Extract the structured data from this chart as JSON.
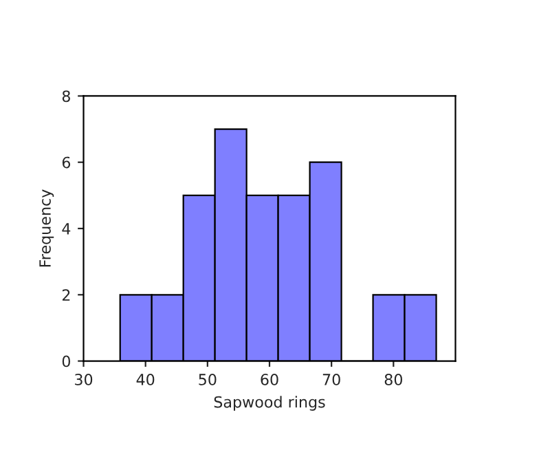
{
  "chart_data": {
    "type": "histogram",
    "xlabel": "Sapwood rings",
    "ylabel": "Frequency",
    "bins": [
      35.9,
      41,
      46.1,
      51.2,
      56.3,
      61.4,
      66.5,
      71.6,
      76.7,
      81.8,
      86.9
    ],
    "values": [
      2,
      2,
      5,
      7,
      5,
      5,
      6,
      0,
      2,
      2
    ],
    "color": "#7f7fff",
    "xlim": [
      30,
      90
    ],
    "xticks": [
      30,
      40,
      50,
      60,
      70,
      80
    ],
    "ylim": [
      0,
      8
    ],
    "yticks": [
      0,
      2,
      4,
      6,
      8
    ],
    "grid": false
  }
}
